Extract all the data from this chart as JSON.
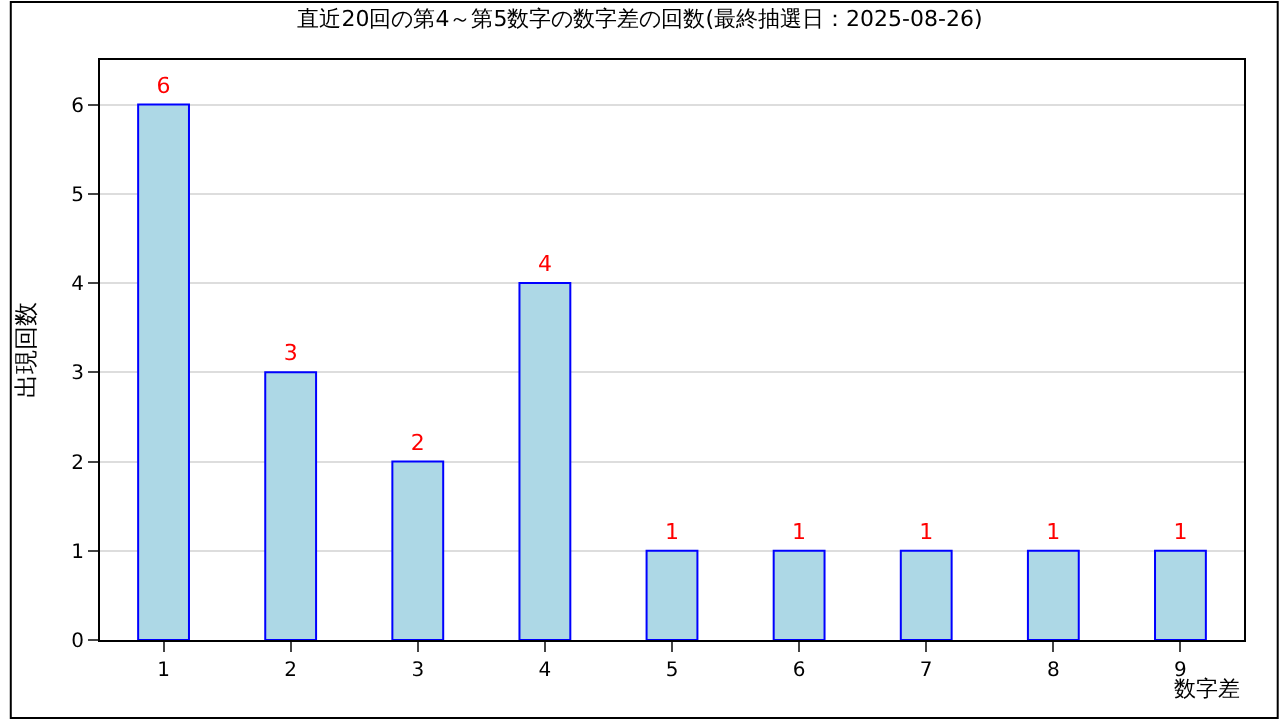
{
  "chart_data": {
    "type": "bar",
    "title": "直近20回の第4～第5数字の数字差の回数(最終抽選日：2025-08-26)",
    "xlabel": "数字差",
    "ylabel": "出現回数",
    "categories": [
      "1",
      "2",
      "3",
      "4",
      "5",
      "6",
      "7",
      "8",
      "9"
    ],
    "series": [
      {
        "color": "#add8e6",
        "values": [
          6,
          3,
          2,
          4,
          1,
          1,
          1,
          1,
          1
        ]
      }
    ],
    "ylim": [
      0,
      6.5
    ],
    "yticks": [
      0,
      1,
      2,
      3,
      4,
      5,
      6
    ],
    "grid": "y",
    "legend": false,
    "data_labels": true
  }
}
